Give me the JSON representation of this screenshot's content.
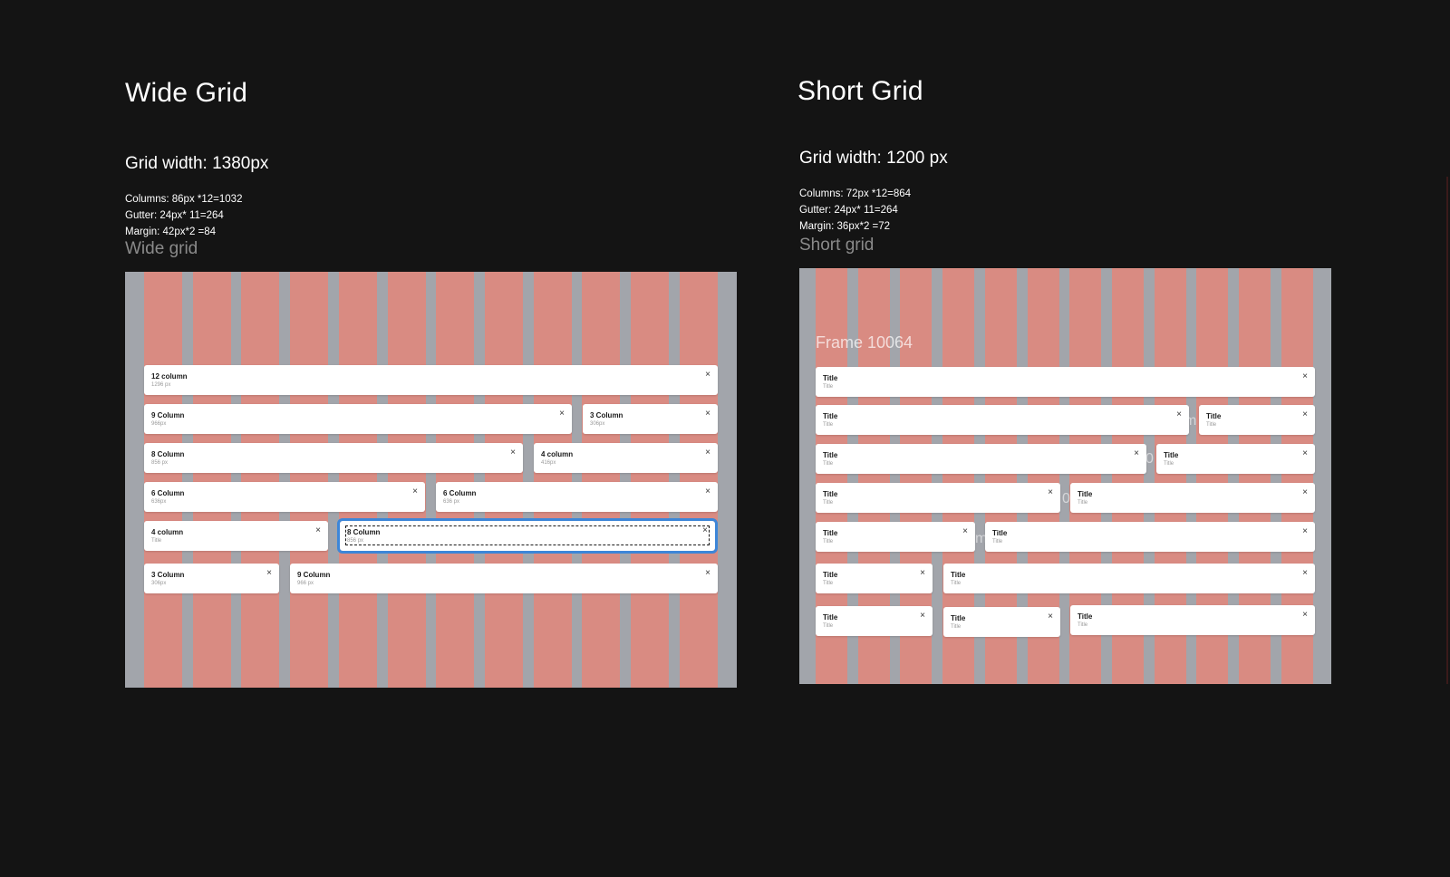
{
  "wide": {
    "title": "Wide Grid",
    "grid_width": "Grid width: 1380px",
    "specs": [
      "Columns: 86px *12=1032",
      "Gutter: 24px* 11=264",
      "Margin: 42px*2 =84"
    ],
    "frame_label": "Wide grid",
    "cards": [
      {
        "title": "12 column",
        "sub": "1296 px"
      },
      {
        "title": "9 Column",
        "sub": "966px"
      },
      {
        "title": "3 Column",
        "sub": "306px"
      },
      {
        "title": "8 Column",
        "sub": "856 px"
      },
      {
        "title": "4 column",
        "sub": "416px"
      },
      {
        "title": "6 Column",
        "sub": "636px"
      },
      {
        "title": "6 Column",
        "sub": "636 px"
      },
      {
        "title": "4 column",
        "sub": "Title"
      },
      {
        "title": "8 Column",
        "sub": "856 px"
      },
      {
        "title": "3 Column",
        "sub": "306px"
      },
      {
        "title": "9 Column",
        "sub": "966 px"
      }
    ]
  },
  "short": {
    "title": "Short Grid",
    "grid_width": "Grid width: 1200 px",
    "specs": [
      "Columns: 72px *12=864",
      "Gutter: 24px* 11=264",
      "Margin: 36px*2 =72"
    ],
    "frame_label": "Short grid",
    "frame_name": "Frame 10064",
    "card_title": "Title",
    "card_sub": "Title",
    "ghost_chars": [
      "m",
      "0",
      "0",
      "m"
    ]
  },
  "close_glyph": "×"
}
